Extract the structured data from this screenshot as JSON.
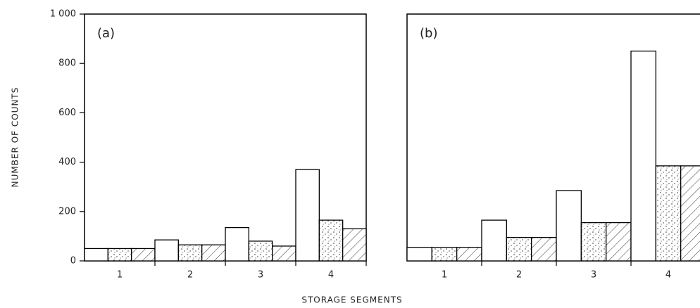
{
  "chart_data": [
    {
      "type": "bar",
      "label": "(a)",
      "y_label": "NUMBER OF COUNTS",
      "x_label": "STORAGE SEGMENTS",
      "categories": [
        "1",
        "2",
        "3",
        "4"
      ],
      "series": [
        {
          "color": "#000000",
          "fill": "none",
          "values": [
            50,
            85,
            135,
            370
          ]
        },
        {
          "color": "#000000",
          "fill": "dots",
          "values": [
            50,
            65,
            80,
            165
          ]
        },
        {
          "color": "#000000",
          "fill": "hatch",
          "values": [
            50,
            65,
            60,
            130
          ]
        }
      ],
      "ylim": [
        0,
        1000
      ],
      "yticks": [
        0,
        200,
        400,
        600,
        800,
        {
          "value": 1000,
          "label": "1 000"
        }
      ]
    },
    {
      "type": "bar",
      "label": "(b)",
      "categories": [
        "1",
        "2",
        "3",
        "4"
      ],
      "series": [
        {
          "color": "#000000",
          "fill": "none",
          "values": [
            55,
            165,
            285,
            850
          ]
        },
        {
          "color": "#000000",
          "fill": "dots",
          "values": [
            55,
            95,
            155,
            385
          ]
        },
        {
          "color": "#000000",
          "fill": "hatch",
          "values": [
            55,
            95,
            155,
            385
          ]
        }
      ],
      "ylim": [
        0,
        1000
      ]
    }
  ]
}
